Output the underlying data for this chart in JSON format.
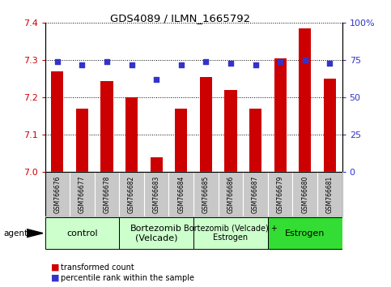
{
  "title": "GDS4089 / ILMN_1665792",
  "samples": [
    "GSM766676",
    "GSM766677",
    "GSM766678",
    "GSM766682",
    "GSM766683",
    "GSM766684",
    "GSM766685",
    "GSM766686",
    "GSM766687",
    "GSM766679",
    "GSM766680",
    "GSM766681"
  ],
  "transformed_count": [
    7.27,
    7.17,
    7.245,
    7.2,
    7.04,
    7.17,
    7.255,
    7.22,
    7.17,
    7.305,
    7.385,
    7.25
  ],
  "percentile_rank": [
    74,
    72,
    74,
    72,
    62,
    72,
    74,
    73,
    72,
    74,
    75,
    73
  ],
  "ylim_left": [
    7.0,
    7.4
  ],
  "ylim_right": [
    0,
    100
  ],
  "yticks_left": [
    7.0,
    7.1,
    7.2,
    7.3,
    7.4
  ],
  "yticks_right": [
    0,
    25,
    50,
    75,
    100
  ],
  "bar_color": "#cc0000",
  "dot_color": "#3333cc",
  "bar_bottom": 7.0,
  "groups": [
    {
      "label": "control",
      "start": 0,
      "end": 3,
      "color": "#ccffcc",
      "fontsize": 8
    },
    {
      "label": "Bortezomib\n(Velcade)",
      "start": 3,
      "end": 6,
      "color": "#ccffcc",
      "fontsize": 8
    },
    {
      "label": "Bortezomib (Velcade) +\nEstrogen",
      "start": 6,
      "end": 9,
      "color": "#ccffcc",
      "fontsize": 7
    },
    {
      "label": "Estrogen",
      "start": 9,
      "end": 12,
      "color": "#33dd33",
      "fontsize": 8
    }
  ],
  "agent_label": "agent",
  "legend_bar_label": "transformed count",
  "legend_dot_label": "percentile rank within the sample",
  "tick_bg": "#c8c8c8"
}
